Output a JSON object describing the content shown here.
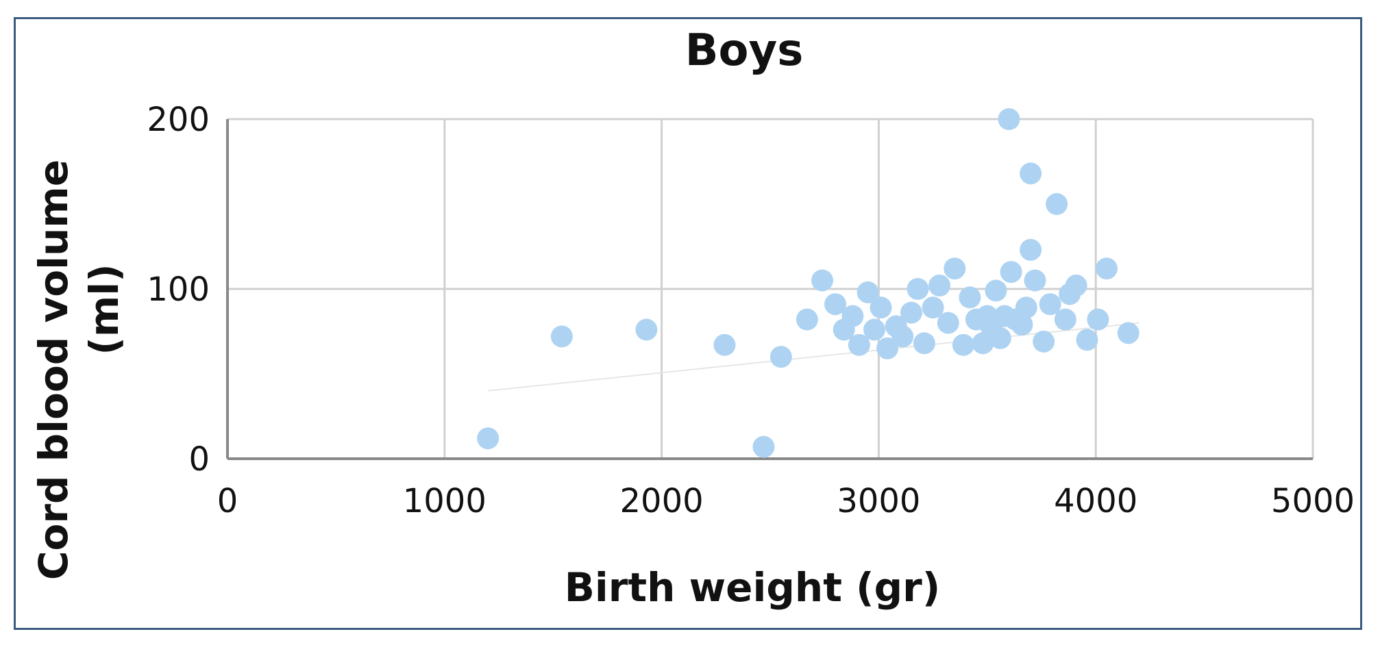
{
  "chart_data": {
    "type": "scatter",
    "title": "Boys",
    "xlabel": "Birth weight (gr)",
    "ylabel_lines": [
      "Cord blood volume",
      "(ml)"
    ],
    "xlim": [
      0,
      5000
    ],
    "ylim": [
      0,
      200
    ],
    "xticks": [
      0,
      1000,
      2000,
      3000,
      4000,
      5000
    ],
    "yticks": [
      0,
      100,
      200
    ],
    "grid": true,
    "legend": "none",
    "marker_color": "#aed3f2",
    "trendline": {
      "x": [
        1200,
        4200
      ],
      "y": [
        40,
        80
      ],
      "color": "#e6e6e6"
    },
    "points": [
      {
        "x": 1200,
        "y": 12
      },
      {
        "x": 1540,
        "y": 72
      },
      {
        "x": 1930,
        "y": 76
      },
      {
        "x": 2290,
        "y": 67
      },
      {
        "x": 2470,
        "y": 7
      },
      {
        "x": 2550,
        "y": 60
      },
      {
        "x": 2670,
        "y": 82
      },
      {
        "x": 2740,
        "y": 105
      },
      {
        "x": 2800,
        "y": 91
      },
      {
        "x": 2840,
        "y": 76
      },
      {
        "x": 2880,
        "y": 84
      },
      {
        "x": 2910,
        "y": 67
      },
      {
        "x": 2950,
        "y": 98
      },
      {
        "x": 2980,
        "y": 76
      },
      {
        "x": 3010,
        "y": 89
      },
      {
        "x": 3040,
        "y": 65
      },
      {
        "x": 3080,
        "y": 78
      },
      {
        "x": 3110,
        "y": 72
      },
      {
        "x": 3150,
        "y": 86
      },
      {
        "x": 3180,
        "y": 100
      },
      {
        "x": 3210,
        "y": 68
      },
      {
        "x": 3250,
        "y": 89
      },
      {
        "x": 3280,
        "y": 102
      },
      {
        "x": 3320,
        "y": 80
      },
      {
        "x": 3350,
        "y": 112
      },
      {
        "x": 3390,
        "y": 67
      },
      {
        "x": 3420,
        "y": 95
      },
      {
        "x": 3450,
        "y": 82
      },
      {
        "x": 3480,
        "y": 68
      },
      {
        "x": 3500,
        "y": 84
      },
      {
        "x": 3520,
        "y": 77
      },
      {
        "x": 3540,
        "y": 99
      },
      {
        "x": 3560,
        "y": 71
      },
      {
        "x": 3580,
        "y": 84
      },
      {
        "x": 3600,
        "y": 200
      },
      {
        "x": 3610,
        "y": 110
      },
      {
        "x": 3630,
        "y": 82
      },
      {
        "x": 3660,
        "y": 79
      },
      {
        "x": 3680,
        "y": 89
      },
      {
        "x": 3700,
        "y": 168
      },
      {
        "x": 3700,
        "y": 123
      },
      {
        "x": 3720,
        "y": 105
      },
      {
        "x": 3760,
        "y": 69
      },
      {
        "x": 3790,
        "y": 91
      },
      {
        "x": 3820,
        "y": 150
      },
      {
        "x": 3860,
        "y": 82
      },
      {
        "x": 3880,
        "y": 97
      },
      {
        "x": 3910,
        "y": 102
      },
      {
        "x": 3960,
        "y": 70
      },
      {
        "x": 4010,
        "y": 82
      },
      {
        "x": 4050,
        "y": 112
      },
      {
        "x": 4150,
        "y": 74
      }
    ]
  }
}
